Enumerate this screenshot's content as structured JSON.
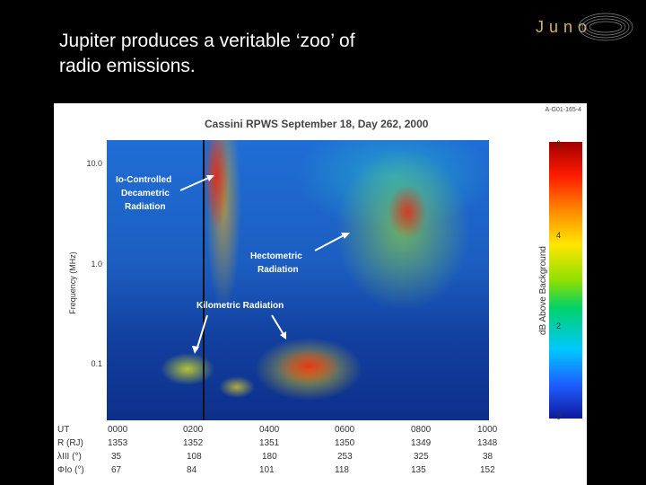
{
  "slide": {
    "title_line1": "Jupiter produces a veritable ‘zoo’ of",
    "title_line2": "radio emissions.",
    "logo_text": "Juno"
  },
  "figure": {
    "id": "A-G01-165-4",
    "title": "Cassini RPWS     September 18, Day 262, 2000",
    "ylabel": "Frequency (MHz)",
    "yticks": [
      "10.0",
      "1.0",
      "0.1"
    ],
    "colorbar_label": "dB Above Background",
    "colorbar_ticks": [
      "6",
      "4",
      "2",
      "0"
    ],
    "annotations": {
      "io_line1": "Io-Controlled",
      "io_line2": "Decametric",
      "io_line3": "Radiation",
      "hecto_line1": "Hectometric",
      "hecto_line2": "Radiation",
      "kilo": "Kilometric Radiation"
    },
    "table": {
      "rows": [
        {
          "label": "UT",
          "values": [
            "0000",
            "0200",
            "0400",
            "0600",
            "0800",
            "1000"
          ]
        },
        {
          "label": "R (RJ)",
          "values": [
            "1353",
            "1352",
            "1351",
            "1350",
            "1349",
            "1348"
          ]
        },
        {
          "label": "λIII (°)",
          "values": [
            "35",
            "108",
            "180",
            "253",
            "325",
            "38"
          ]
        },
        {
          "label": "ΦIo (°)",
          "values": [
            "67",
            "84",
            "101",
            "118",
            "135",
            "152"
          ]
        }
      ]
    }
  }
}
